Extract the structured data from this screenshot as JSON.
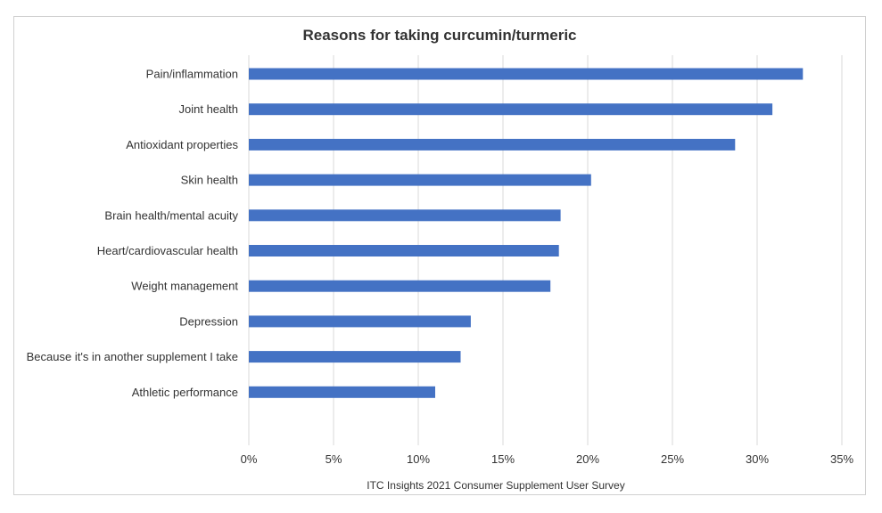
{
  "chart_data": {
    "type": "bar",
    "orientation": "horizontal",
    "title": "Reasons for taking curcumin/turmeric",
    "source": "ITC Insights 2021 Consumer Supplement User Survey",
    "categories": [
      "Pain/inflammation",
      "Joint health",
      "Antioxidant properties",
      "Skin health",
      "Brain health/mental acuity",
      "Heart/cardiovascular health",
      "Weight management",
      "Depression",
      "Because it's in another supplement I take",
      "Athletic performance"
    ],
    "values": [
      32.7,
      30.9,
      28.7,
      20.2,
      18.4,
      18.3,
      17.8,
      13.1,
      12.5,
      11.0
    ],
    "xlim": [
      0,
      35
    ],
    "xticks": [
      0,
      5,
      10,
      15,
      20,
      25,
      30,
      35
    ],
    "xtick_labels": [
      "0%",
      "5%",
      "10%",
      "15%",
      "20%",
      "25%",
      "30%",
      "35%"
    ],
    "grid": "vertical",
    "legend": "none",
    "bar_color": "#4472C4"
  }
}
